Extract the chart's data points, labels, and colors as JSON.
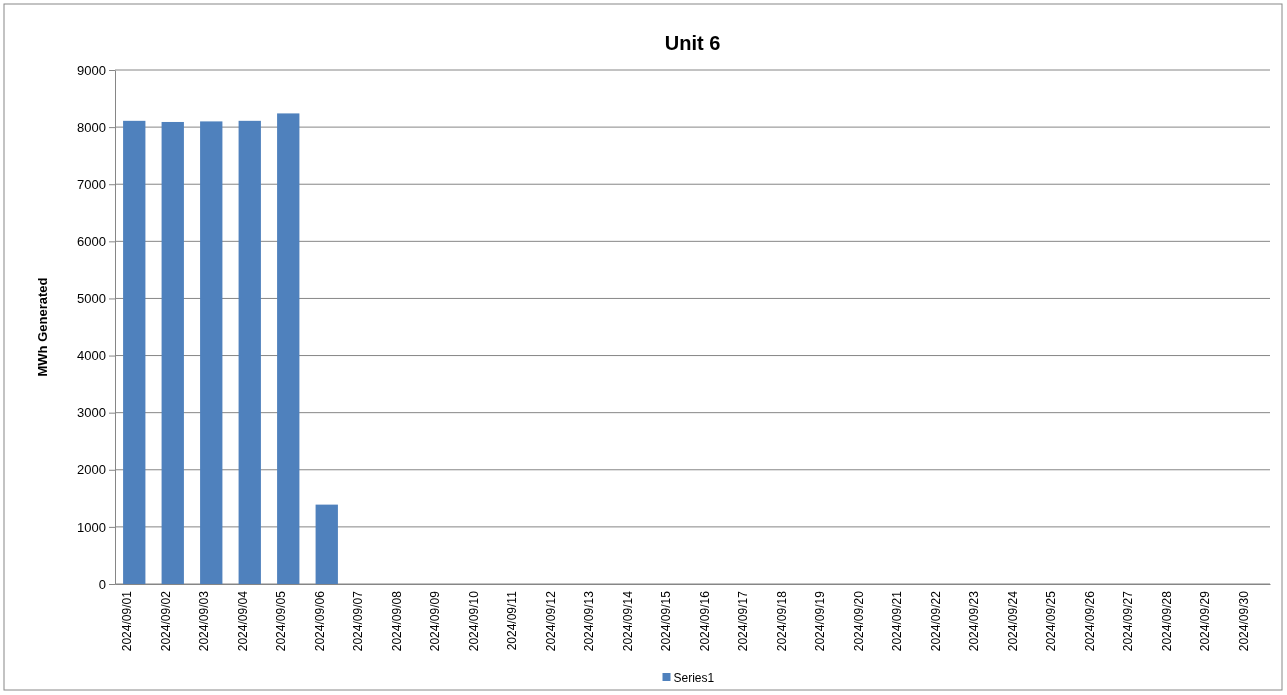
{
  "chart_data": {
    "type": "bar",
    "title": "Unit 6",
    "ylabel": "MWh Generated",
    "categories": [
      "2024/09/01",
      "2024/09/02",
      "2024/09/03",
      "2024/09/04",
      "2024/09/05",
      "2024/09/06",
      "2024/09/07",
      "2024/09/08",
      "2024/09/09",
      "2024/09/10",
      "2024/09/11",
      "2024/09/12",
      "2024/09/13",
      "2024/09/14",
      "2024/09/15",
      "2024/09/16",
      "2024/09/17",
      "2024/09/18",
      "2024/09/19",
      "2024/09/20",
      "2024/09/21",
      "2024/09/22",
      "2024/09/23",
      "2024/09/24",
      "2024/09/25",
      "2024/09/26",
      "2024/09/27",
      "2024/09/28",
      "2024/09/29",
      "2024/09/30"
    ],
    "series": [
      {
        "name": "Series1",
        "color": "#4f81bd",
        "values": [
          8110,
          8090,
          8100,
          8110,
          8240,
          1390,
          0,
          0,
          0,
          0,
          0,
          0,
          0,
          0,
          0,
          0,
          0,
          0,
          0,
          0,
          0,
          0,
          0,
          0,
          0,
          0,
          0,
          0,
          0,
          0
        ]
      }
    ],
    "ylim": [
      0,
      9000
    ],
    "yticks": [
      0,
      1000,
      2000,
      3000,
      4000,
      5000,
      6000,
      7000,
      8000,
      9000
    ],
    "grid": "y",
    "legend": "bottom"
  }
}
